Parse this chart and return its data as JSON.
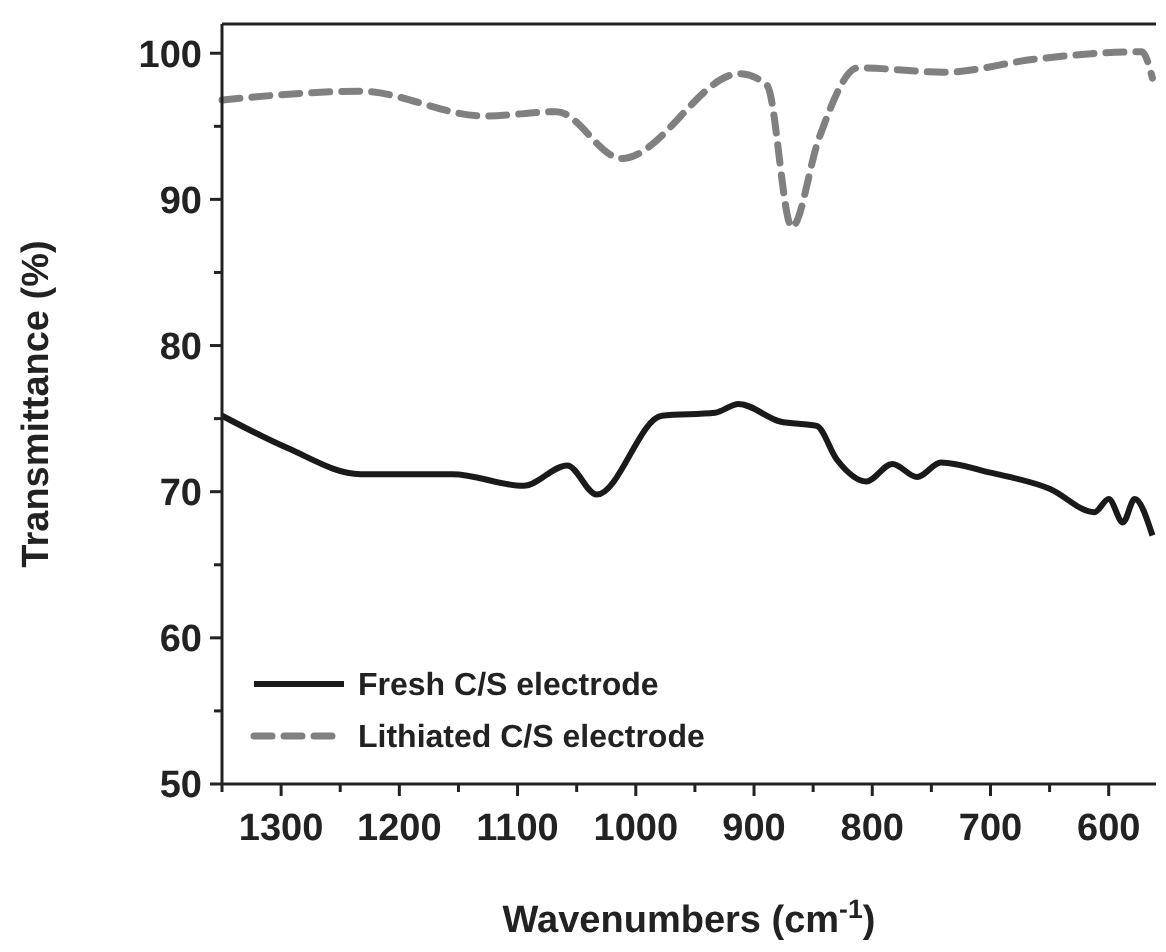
{
  "chart_data": {
    "type": "line",
    "xlabel": "Wavenumbers (cm$^{-1}$)",
    "ylabel": "Transmittance (%)",
    "xlim": [
      1350,
      560
    ],
    "ylim": [
      50,
      102
    ],
    "xticks": [
      {
        "value": 1350,
        "label": null
      },
      1300,
      {
        "value": 1250,
        "label": null
      },
      1200,
      {
        "value": 1150,
        "label": null
      },
      1100,
      {
        "value": 1050,
        "label": null
      },
      1000,
      {
        "value": 950,
        "label": null
      },
      900,
      {
        "value": 850,
        "label": null
      },
      800,
      {
        "value": 750,
        "label": null
      },
      700,
      {
        "value": 650,
        "label": null
      },
      600
    ],
    "yticks": [
      50,
      {
        "value": 55,
        "label": null
      },
      60,
      {
        "value": 65,
        "label": null
      },
      70,
      {
        "value": 75,
        "label": null
      },
      80,
      {
        "value": 85,
        "label": null
      },
      90,
      {
        "value": 95,
        "label": null
      },
      100
    ],
    "grid": false,
    "legend": "bottom left",
    "series": [
      {
        "name": "Fresh C/S electrode",
        "color": "#1a1a1a",
        "line_style": "solid",
        "x": [
          1350,
          1295,
          1233,
          1155,
          1095,
          1058,
          1033,
          978,
          933,
          913,
          878,
          847,
          830,
          805,
          783,
          762,
          742,
          700,
          650,
          612,
          600,
          588,
          578,
          563
        ],
        "values": [
          75.2,
          73.0,
          71.2,
          71.2,
          70.4,
          71.8,
          69.8,
          75.2,
          75.4,
          76.0,
          74.8,
          74.5,
          72.2,
          70.7,
          71.9,
          71.0,
          72.0,
          71.3,
          70.2,
          68.6,
          69.5,
          67.9,
          69.5,
          67.0
        ]
      },
      {
        "name": "Lithiated C/S electrode",
        "color": "#808080",
        "line_style": "dashed",
        "x": [
          1350,
          1233,
          1128,
          1067,
          1012,
          912,
          889,
          868,
          845,
          812,
          739,
          662,
          572,
          563
        ],
        "values": [
          96.8,
          97.4,
          95.7,
          96.0,
          92.8,
          98.6,
          97.8,
          88.1,
          94.2,
          99.0,
          98.7,
          99.6,
          100.1,
          98.3
        ]
      }
    ]
  }
}
